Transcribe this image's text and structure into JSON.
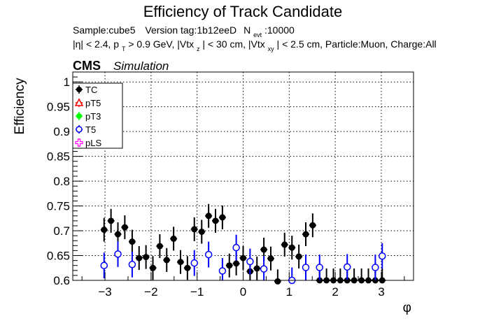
{
  "header": {
    "title": "Efficiency of Track Candidate",
    "sample_line": {
      "sample": "Sample:cube5",
      "version": "Version tag:1b12eeD",
      "nevt_label": "N",
      "nevt_sub": "evt",
      "nevt_value": ":10000"
    },
    "cuts_line": {
      "eta": "|η| < 2.4, p",
      "pt_sub": "T",
      "pt_rest": " > 0.9 GeV, |Vtx",
      "vz_sub": "z",
      "vz_rest": "| < 30 cm, |Vtx",
      "vxy_sub": "xy",
      "vxy_rest": "| < 2.5 cm, Particle:Muon, Charge:All"
    },
    "cms": "CMS",
    "simulation": "Simulation"
  },
  "chart_data": {
    "type": "scatter",
    "title": "Efficiency of Track Candidate",
    "xlabel": "φ",
    "ylabel": "Efficiency",
    "xlim": [
      -3.7,
      3.7
    ],
    "ylim": [
      0.6,
      1.02
    ],
    "x_ticks": [
      -3,
      -2,
      -1,
      0,
      1,
      2,
      3
    ],
    "x_tick_labels": [
      "−3",
      "−2",
      "−1",
      "0",
      "1",
      "2",
      "3"
    ],
    "y_ticks": [
      0.6,
      0.65,
      0.7,
      0.75,
      0.8,
      0.85,
      0.9,
      0.95,
      1.0
    ],
    "y_tick_labels": [
      "0.6",
      "0.65",
      "0.7",
      "0.75",
      "0.8",
      "0.85",
      "0.9",
      "0.95",
      "1"
    ],
    "grid": true,
    "legend_position": "top-left",
    "legend": [
      {
        "name": "TC",
        "color": "#000000",
        "marker": "filled-circle"
      },
      {
        "name": "pT5",
        "color": "#ff0000",
        "marker": "open-triangle"
      },
      {
        "name": "pT3",
        "color": "#00ff00",
        "marker": "filled-circle"
      },
      {
        "name": "T5",
        "color": "#0000ff",
        "marker": "open-circle"
      },
      {
        "name": "pLS",
        "color": "#ff00ff",
        "marker": "open-cross"
      }
    ],
    "series": [
      {
        "name": "TC",
        "color": "#000000",
        "x": [
          -3.02,
          -2.87,
          -2.72,
          -2.57,
          -2.41,
          -2.26,
          -2.11,
          -1.96,
          -1.81,
          -1.66,
          -1.51,
          -1.36,
          -1.21,
          -1.06,
          -0.9,
          -0.75,
          -0.6,
          -0.45,
          -0.3,
          -0.15,
          0.0,
          0.15,
          0.3,
          0.45,
          0.6,
          0.75,
          0.9,
          1.06,
          1.21,
          1.36,
          1.51,
          1.66,
          1.81,
          1.96,
          2.11,
          2.26,
          2.41,
          2.57,
          2.72,
          2.87,
          3.02
        ],
        "y": [
          0.702,
          0.72,
          0.693,
          0.707,
          0.678,
          0.645,
          0.647,
          0.625,
          0.669,
          0.641,
          0.684,
          0.637,
          0.625,
          0.703,
          0.698,
          0.73,
          0.72,
          0.727,
          0.63,
          0.634,
          0.645,
          0.618,
          0.624,
          0.662,
          0.644,
          0.598,
          0.672,
          0.666,
          0.648,
          0.693,
          0.711,
          0.6,
          0.6,
          0.6,
          0.6,
          0.6,
          0.6,
          0.6,
          0.6,
          0.6,
          0.6
        ],
        "yerr": [
          0.024,
          0.024,
          0.024,
          0.024,
          0.024,
          0.024,
          0.024,
          0.024,
          0.024,
          0.024,
          0.024,
          0.024,
          0.024,
          0.024,
          0.024,
          0.024,
          0.024,
          0.024,
          0.024,
          0.024,
          0.024,
          0.024,
          0.024,
          0.024,
          0.024,
          0.024,
          0.024,
          0.024,
          0.024,
          0.024,
          0.024,
          0.024,
          0.024,
          0.024,
          0.024,
          0.024,
          0.024,
          0.024,
          0.024,
          0.024,
          0.024
        ]
      },
      {
        "name": "T5",
        "color": "#0000ff",
        "x": [
          -3.02,
          -2.72,
          -2.41,
          -1.06,
          -0.75,
          -0.45,
          -0.15,
          0.15,
          0.45,
          1.06,
          1.36,
          1.66,
          2.26,
          2.87,
          3.02
        ],
        "y": [
          0.63,
          0.653,
          0.632,
          0.635,
          0.652,
          0.619,
          0.666,
          0.638,
          0.623,
          0.6,
          0.626,
          0.626,
          0.627,
          0.626,
          0.649
        ],
        "yerr": [
          0.026,
          0.026,
          0.026,
          0.026,
          0.026,
          0.026,
          0.026,
          0.026,
          0.026,
          0.026,
          0.026,
          0.026,
          0.026,
          0.026,
          0.026
        ]
      }
    ]
  }
}
